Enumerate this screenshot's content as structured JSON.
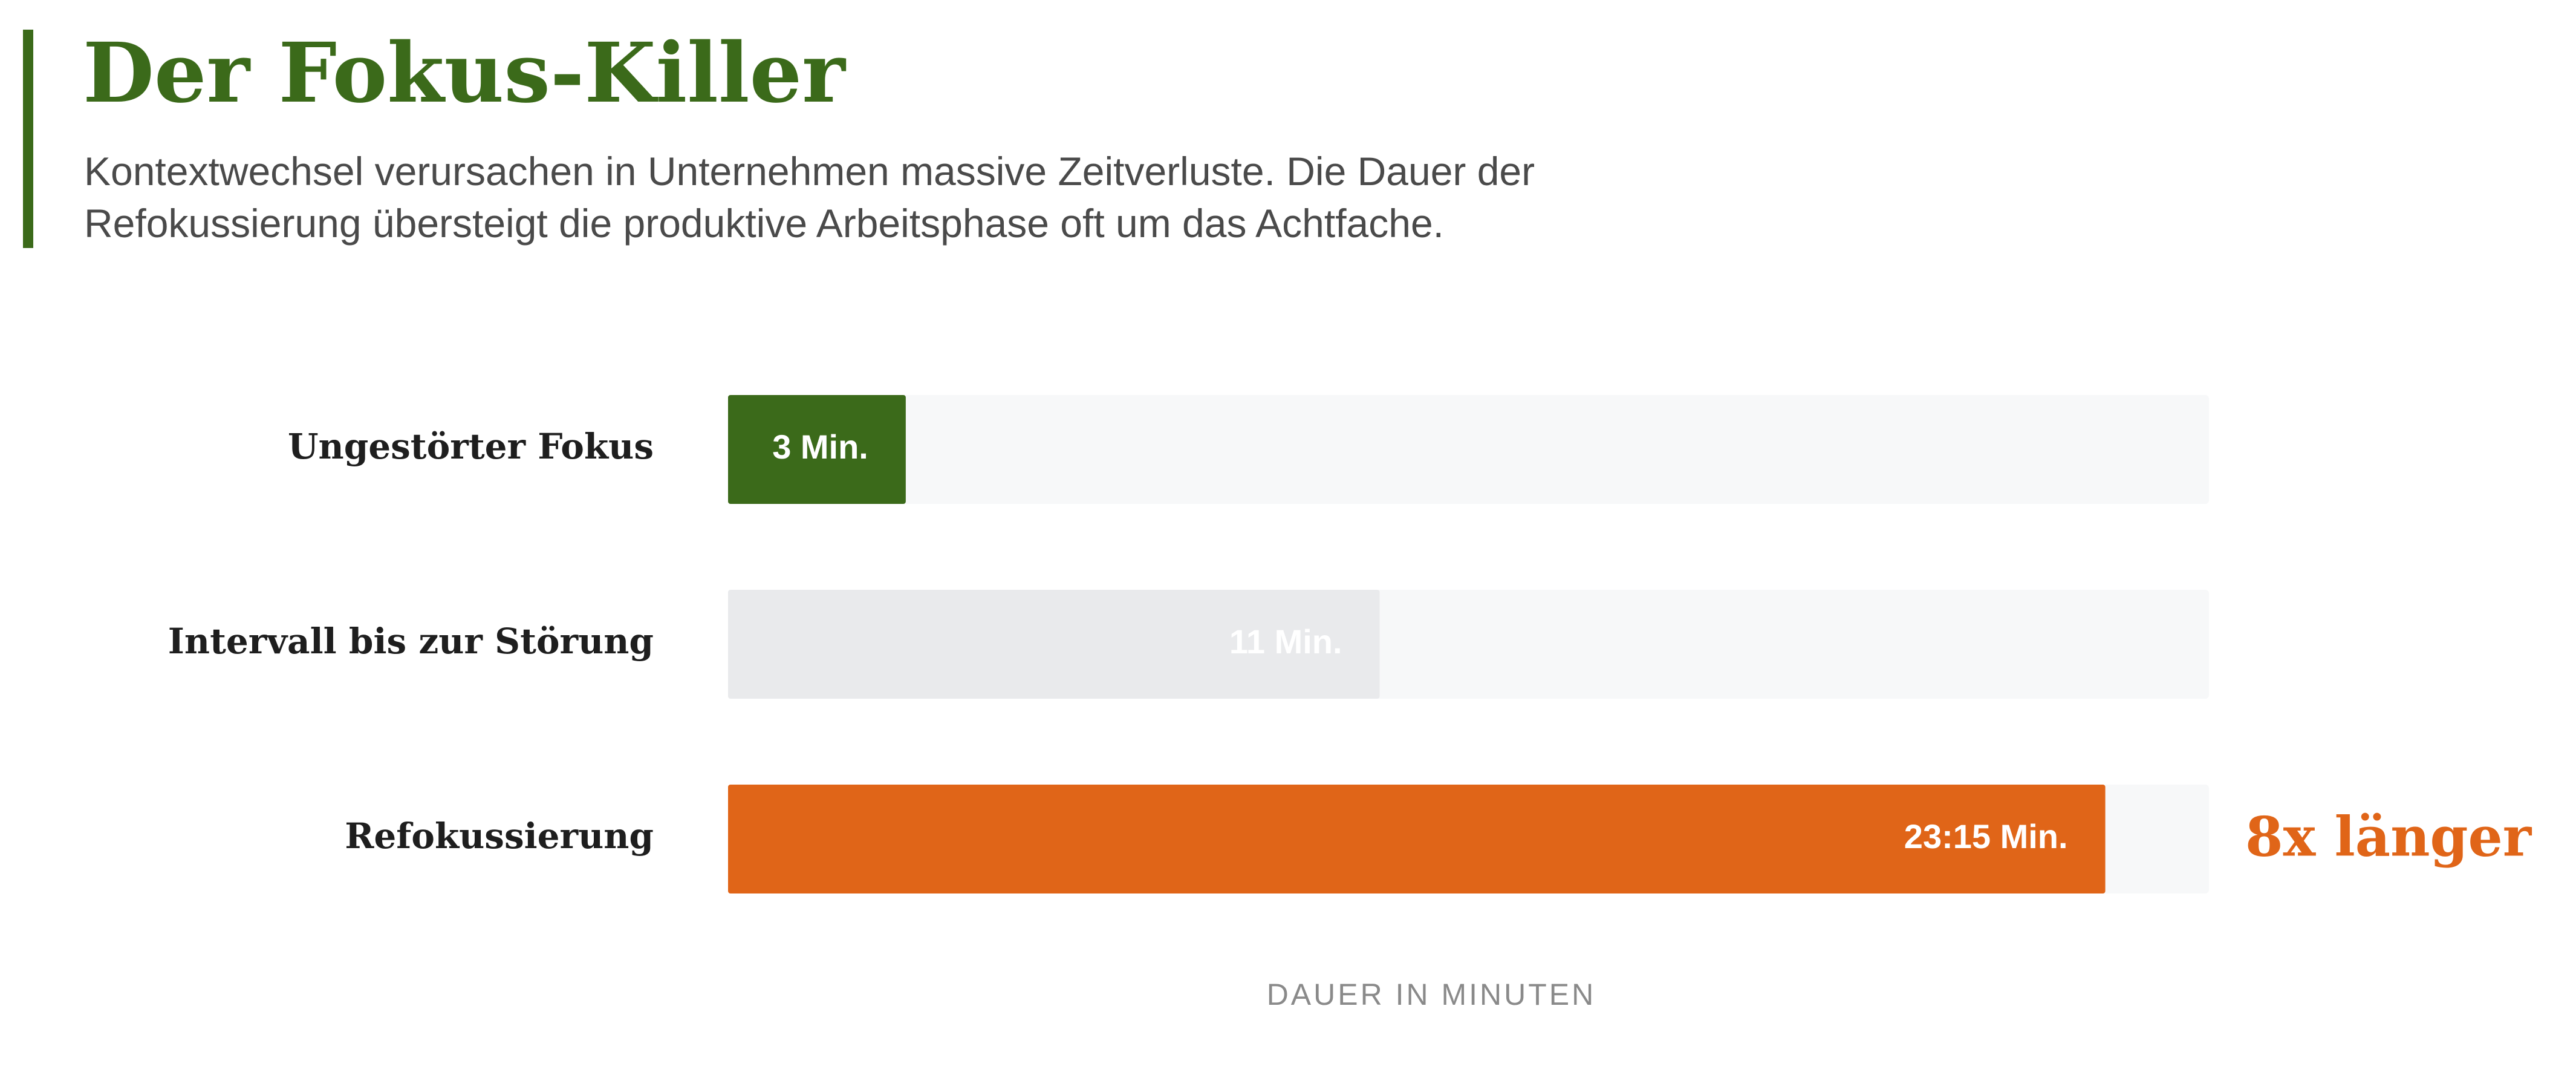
{
  "chart_data": {
    "type": "bar",
    "orientation": "horizontal",
    "title": "Der Fokus-Killer",
    "subtitle": "Kontextwechsel verursachen in Unternehmen massive Zeitverluste. Die Dauer der Refokussierung übersteigt die produktive Arbeitsphase oft um das Achtfache.",
    "categories": [
      "Ungestörter Fokus",
      "Intervall bis zur Störung",
      "Refokussierung"
    ],
    "values": [
      3,
      11,
      23.25
    ],
    "value_labels": [
      "3 Min.",
      "11 Min.",
      "23:15 Min."
    ],
    "colors": [
      "#3b6a1a",
      "#e9eaec",
      "#e06518"
    ],
    "xlim": [
      0,
      25
    ],
    "xlabel": "DAUER IN MINUTEN",
    "annotation": "8x länger"
  }
}
